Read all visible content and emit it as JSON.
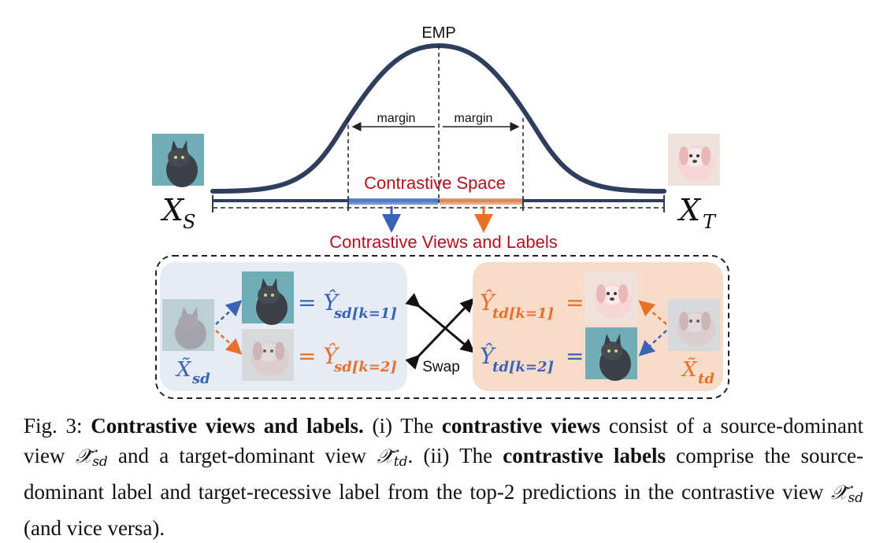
{
  "figure": {
    "emp_label": "EMP",
    "margin_left": "margin",
    "margin_right": "margin",
    "contrastive_space": "Contrastive Space",
    "contrastive_views_labels": "Contrastive Views and Labels",
    "xs_main": "X",
    "xs_sub": "S",
    "xt_main": "X",
    "xt_sub": "T",
    "swap": "Swap",
    "left_panel": {
      "view_main": "X̃",
      "view_sub": "sd",
      "label1_main": "= Ŷ",
      "label1_sub": "sd[k=1]",
      "label2_main": "= Ŷ",
      "label2_sub": "sd[k=2]"
    },
    "right_panel": {
      "view_main": "X̃",
      "view_sub": "td",
      "label1_main": "Ŷ",
      "label1_sub": "td[k=1]",
      "label1_eq": "=",
      "label2_main": "Ŷ",
      "label2_sub": "td[k=2]",
      "label2_eq": "="
    },
    "colors": {
      "curve": "#2f3e5c",
      "blue": "#3a63b5",
      "orange": "#e8702a",
      "red": "#b3121c",
      "left_panel_bg": "#e6ecf6",
      "right_panel_bg": "#f7dcc9"
    }
  },
  "caption": {
    "fig_label": "Fig. 3:",
    "title": "Contrastive views and labels.",
    "t1": " (i) The ",
    "b1": "contrastive views",
    "t2": " consist of a source-dominant view ",
    "m1": "𝒳̃",
    "m1_sub": "sd",
    "t3": " and a target-dominant view ",
    "m2": "𝒳̃",
    "m2_sub": "td",
    "t4": ". (ii) The ",
    "b2": "contrastive labels",
    "t5": " comprise the source-dominant label and target-recessive label from the top-2 predictions in the contrastive view ",
    "m3": "𝒳̃",
    "m3_sub": "sd",
    "t6": " (and vice versa)."
  }
}
